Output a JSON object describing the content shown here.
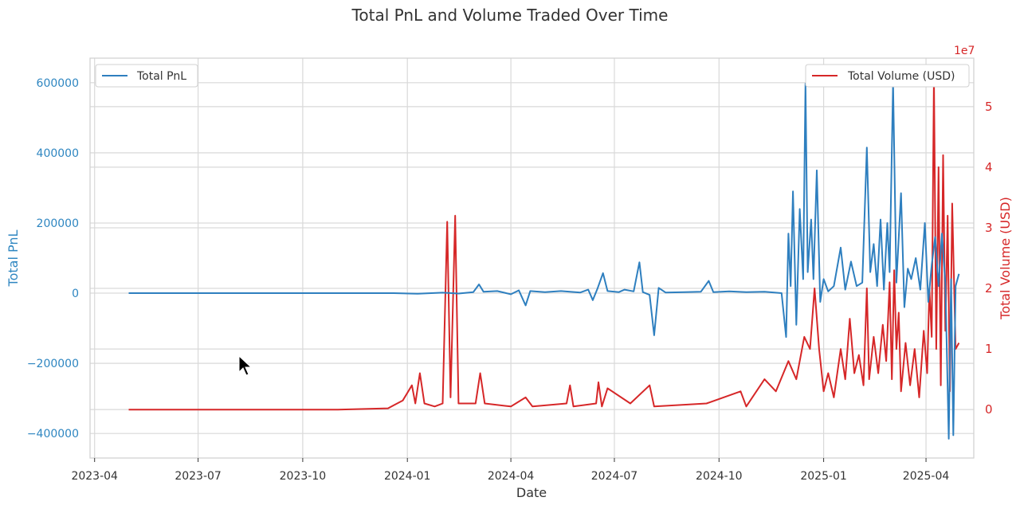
{
  "chart_data": {
    "type": "line",
    "title": "Total PnL and Volume Traded Over Time",
    "xlabel": "Date",
    "x_ticks": [
      "2023-04",
      "2023-07",
      "2023-10",
      "2024-01",
      "2024-04",
      "2024-07",
      "2024-10",
      "2025-01",
      "2025-04"
    ],
    "x_range": [
      "2023-03-28",
      "2025-05-13"
    ],
    "grid": true,
    "left_axis": {
      "ylabel": "Total PnL",
      "ylim": [
        -470000,
        670000
      ],
      "ticks": [
        -400000,
        -200000,
        0,
        200000,
        400000,
        600000
      ],
      "tick_labels": [
        "−400000",
        "−200000",
        "0",
        "200000",
        "400000",
        "600000"
      ],
      "color": "#2e7fbf"
    },
    "right_axis": {
      "ylabel": "Total Volume (USD)",
      "offset_label": "1e7",
      "ylim": [
        -0.8,
        5.8
      ],
      "ticks": [
        0,
        1,
        2,
        3,
        4,
        5
      ],
      "tick_labels": [
        "0",
        "1",
        "2",
        "3",
        "4",
        "5"
      ],
      "color": "#d62728"
    },
    "legends": [
      {
        "label": "Total PnL",
        "placement": "top-left",
        "color": "#2e7fbf"
      },
      {
        "label": "Total Volume (USD)",
        "placement": "top-right",
        "color": "#d62728"
      }
    ],
    "series": [
      {
        "name": "Total PnL",
        "axis": "left",
        "color": "#2e7fbf",
        "points": [
          [
            "2023-05-01",
            0
          ],
          [
            "2023-08-01",
            0
          ],
          [
            "2023-11-01",
            0
          ],
          [
            "2023-12-20",
            0
          ],
          [
            "2024-01-10",
            -1500
          ],
          [
            "2024-02-01",
            1500
          ],
          [
            "2024-02-15",
            -1000
          ],
          [
            "2024-02-28",
            3000
          ],
          [
            "2024-03-04",
            25000
          ],
          [
            "2024-03-08",
            4000
          ],
          [
            "2024-03-20",
            6000
          ],
          [
            "2024-04-01",
            -3000
          ],
          [
            "2024-04-08",
            8000
          ],
          [
            "2024-04-14",
            -35000
          ],
          [
            "2024-04-18",
            6000
          ],
          [
            "2024-05-01",
            3000
          ],
          [
            "2024-05-15",
            6000
          ],
          [
            "2024-06-01",
            2000
          ],
          [
            "2024-06-08",
            10000
          ],
          [
            "2024-06-12",
            -20000
          ],
          [
            "2024-06-16",
            12000
          ],
          [
            "2024-06-21",
            57000
          ],
          [
            "2024-06-25",
            6000
          ],
          [
            "2024-07-05",
            3000
          ],
          [
            "2024-07-10",
            10000
          ],
          [
            "2024-07-18",
            5000
          ],
          [
            "2024-07-23",
            88000
          ],
          [
            "2024-07-26",
            3000
          ],
          [
            "2024-08-01",
            -5000
          ],
          [
            "2024-08-05",
            -120000
          ],
          [
            "2024-08-09",
            15000
          ],
          [
            "2024-08-15",
            2000
          ],
          [
            "2024-09-01",
            3000
          ],
          [
            "2024-09-15",
            4000
          ],
          [
            "2024-09-22",
            35000
          ],
          [
            "2024-09-26",
            3000
          ],
          [
            "2024-10-10",
            5000
          ],
          [
            "2024-10-25",
            3000
          ],
          [
            "2024-11-10",
            4000
          ],
          [
            "2024-11-25",
            0
          ],
          [
            "2024-11-29",
            -125000
          ],
          [
            "2024-12-01",
            170000
          ],
          [
            "2024-12-03",
            20000
          ],
          [
            "2024-12-05",
            290000
          ],
          [
            "2024-12-08",
            -90000
          ],
          [
            "2024-12-11",
            240000
          ],
          [
            "2024-12-14",
            40000
          ],
          [
            "2024-12-16",
            598000
          ],
          [
            "2024-12-18",
            60000
          ],
          [
            "2024-12-21",
            210000
          ],
          [
            "2024-12-23",
            40000
          ],
          [
            "2024-12-26",
            350000
          ],
          [
            "2024-12-29",
            -25000
          ],
          [
            "2025-01-01",
            40000
          ],
          [
            "2025-01-05",
            5000
          ],
          [
            "2025-01-10",
            20000
          ],
          [
            "2025-01-16",
            130000
          ],
          [
            "2025-01-20",
            10000
          ],
          [
            "2025-01-25",
            90000
          ],
          [
            "2025-01-30",
            20000
          ],
          [
            "2025-02-04",
            30000
          ],
          [
            "2025-02-08",
            415000
          ],
          [
            "2025-02-11",
            60000
          ],
          [
            "2025-02-14",
            140000
          ],
          [
            "2025-02-17",
            20000
          ],
          [
            "2025-02-20",
            210000
          ],
          [
            "2025-02-23",
            10000
          ],
          [
            "2025-02-26",
            200000
          ],
          [
            "2025-02-28",
            60000
          ],
          [
            "2025-03-03",
            600000
          ],
          [
            "2025-03-06",
            30000
          ],
          [
            "2025-03-10",
            285000
          ],
          [
            "2025-03-13",
            -40000
          ],
          [
            "2025-03-16",
            70000
          ],
          [
            "2025-03-19",
            40000
          ],
          [
            "2025-03-23",
            100000
          ],
          [
            "2025-03-27",
            10000
          ],
          [
            "2025-03-31",
            200000
          ],
          [
            "2025-04-03",
            -25000
          ],
          [
            "2025-04-06",
            80000
          ],
          [
            "2025-04-09",
            160000
          ],
          [
            "2025-04-12",
            20000
          ],
          [
            "2025-04-15",
            170000
          ],
          [
            "2025-04-18",
            30000
          ],
          [
            "2025-04-21",
            -415000
          ],
          [
            "2025-04-23",
            40000
          ],
          [
            "2025-04-25",
            -405000
          ],
          [
            "2025-04-27",
            20000
          ],
          [
            "2025-04-30",
            55000
          ]
        ]
      },
      {
        "name": "Total Volume (USD)",
        "axis": "right",
        "color": "#d62728",
        "points": [
          [
            "2023-05-01",
            0
          ],
          [
            "2023-08-01",
            0
          ],
          [
            "2023-11-01",
            0
          ],
          [
            "2023-12-15",
            0.02
          ],
          [
            "2023-12-28",
            0.15
          ],
          [
            "2024-01-05",
            0.4
          ],
          [
            "2024-01-08",
            0.1
          ],
          [
            "2024-01-12",
            0.6
          ],
          [
            "2024-01-16",
            0.1
          ],
          [
            "2024-01-25",
            0.05
          ],
          [
            "2024-02-01",
            0.1
          ],
          [
            "2024-02-05",
            3.1
          ],
          [
            "2024-02-08",
            0.2
          ],
          [
            "2024-02-12",
            3.2
          ],
          [
            "2024-02-15",
            0.1
          ],
          [
            "2024-03-01",
            0.1
          ],
          [
            "2024-03-05",
            0.6
          ],
          [
            "2024-03-09",
            0.1
          ],
          [
            "2024-04-01",
            0.05
          ],
          [
            "2024-04-14",
            0.2
          ],
          [
            "2024-04-20",
            0.05
          ],
          [
            "2024-05-20",
            0.1
          ],
          [
            "2024-05-23",
            0.4
          ],
          [
            "2024-05-26",
            0.05
          ],
          [
            "2024-06-15",
            0.1
          ],
          [
            "2024-06-17",
            0.45
          ],
          [
            "2024-06-20",
            0.05
          ],
          [
            "2024-06-25",
            0.35
          ],
          [
            "2024-07-15",
            0.1
          ],
          [
            "2024-08-01",
            0.4
          ],
          [
            "2024-08-05",
            0.05
          ],
          [
            "2024-09-20",
            0.1
          ],
          [
            "2024-10-20",
            0.3
          ],
          [
            "2024-10-25",
            0.05
          ],
          [
            "2024-11-10",
            0.5
          ],
          [
            "2024-11-20",
            0.3
          ],
          [
            "2024-12-01",
            0.8
          ],
          [
            "2024-12-08",
            0.5
          ],
          [
            "2024-12-15",
            1.2
          ],
          [
            "2024-12-20",
            1.0
          ],
          [
            "2024-12-24",
            2.0
          ],
          [
            "2024-12-28",
            1.0
          ],
          [
            "2025-01-01",
            0.3
          ],
          [
            "2025-01-05",
            0.6
          ],
          [
            "2025-01-10",
            0.2
          ],
          [
            "2025-01-16",
            1.0
          ],
          [
            "2025-01-20",
            0.5
          ],
          [
            "2025-01-24",
            1.5
          ],
          [
            "2025-01-28",
            0.6
          ],
          [
            "2025-02-01",
            0.9
          ],
          [
            "2025-02-05",
            0.4
          ],
          [
            "2025-02-08",
            2.0
          ],
          [
            "2025-02-10",
            0.5
          ],
          [
            "2025-02-14",
            1.2
          ],
          [
            "2025-02-18",
            0.6
          ],
          [
            "2025-02-22",
            1.4
          ],
          [
            "2025-02-25",
            0.8
          ],
          [
            "2025-02-28",
            2.1
          ],
          [
            "2025-03-02",
            0.5
          ],
          [
            "2025-03-04",
            2.3
          ],
          [
            "2025-03-06",
            1.0
          ],
          [
            "2025-03-08",
            1.6
          ],
          [
            "2025-03-10",
            0.3
          ],
          [
            "2025-03-14",
            1.1
          ],
          [
            "2025-03-18",
            0.4
          ],
          [
            "2025-03-22",
            1.0
          ],
          [
            "2025-03-26",
            0.2
          ],
          [
            "2025-03-30",
            1.3
          ],
          [
            "2025-04-02",
            0.6
          ],
          [
            "2025-04-04",
            2.0
          ],
          [
            "2025-04-06",
            1.2
          ],
          [
            "2025-04-08",
            5.5
          ],
          [
            "2025-04-10",
            1.0
          ],
          [
            "2025-04-12",
            4.0
          ],
          [
            "2025-04-14",
            0.4
          ],
          [
            "2025-04-16",
            4.2
          ],
          [
            "2025-04-18",
            1.3
          ],
          [
            "2025-04-20",
            3.2
          ],
          [
            "2025-04-22",
            0.3
          ],
          [
            "2025-04-24",
            3.4
          ],
          [
            "2025-04-27",
            1.0
          ],
          [
            "2025-04-30",
            1.1
          ]
        ]
      }
    ]
  }
}
